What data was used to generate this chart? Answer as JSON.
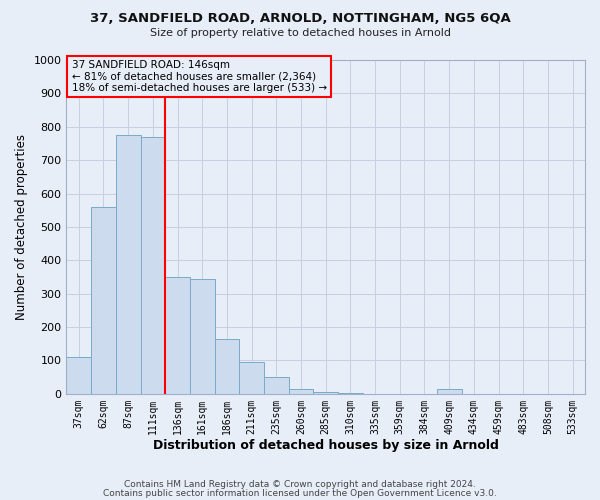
{
  "title_line1": "37, SANDFIELD ROAD, ARNOLD, NOTTINGHAM, NG5 6QA",
  "title_line2": "Size of property relative to detached houses in Arnold",
  "xlabel": "Distribution of detached houses by size in Arnold",
  "ylabel": "Number of detached properties",
  "categories": [
    "37sqm",
    "62sqm",
    "87sqm",
    "111sqm",
    "136sqm",
    "161sqm",
    "186sqm",
    "211sqm",
    "235sqm",
    "260sqm",
    "285sqm",
    "310sqm",
    "335sqm",
    "359sqm",
    "384sqm",
    "409sqm",
    "434sqm",
    "459sqm",
    "483sqm",
    "508sqm",
    "533sqm"
  ],
  "values": [
    110,
    560,
    775,
    770,
    350,
    345,
    165,
    95,
    50,
    15,
    5,
    2,
    0,
    0,
    0,
    15,
    0,
    0,
    0,
    0,
    0
  ],
  "bar_color": "#ccdcee",
  "bar_edge_color": "#7aaac8",
  "red_line_index": 4,
  "ylim": [
    0,
    1000
  ],
  "yticks": [
    0,
    100,
    200,
    300,
    400,
    500,
    600,
    700,
    800,
    900,
    1000
  ],
  "annotation_title": "37 SANDFIELD ROAD: 146sqm",
  "annotation_line1": "← 81% of detached houses are smaller (2,364)",
  "annotation_line2": "18% of semi-detached houses are larger (533) →",
  "footnote1": "Contains HM Land Registry data © Crown copyright and database right 2024.",
  "footnote2": "Contains public sector information licensed under the Open Government Licence v3.0.",
  "background_color": "#e8eef8",
  "grid_color": "#c5d0e0"
}
